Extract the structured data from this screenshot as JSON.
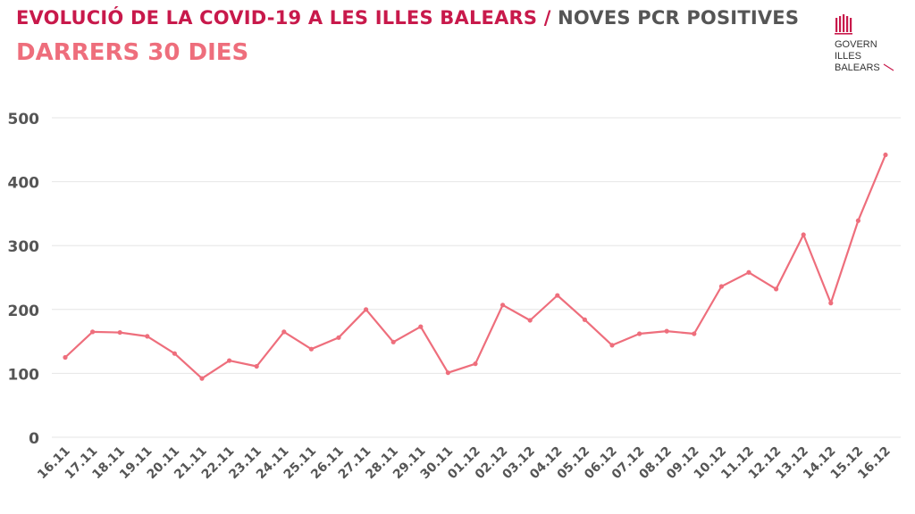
{
  "header": {
    "title_main": "EVOLUCIÓ DE LA COVID-19 A LES ILLES BALEARS",
    "title_separator": " / ",
    "title_sub": "NOVES PCR POSITIVES",
    "subtitle": "DARRERS 30 DIES"
  },
  "logo": {
    "icon": "govern-illes-balears-logo-icon",
    "line1": "GOVERN",
    "line2": "ILLES",
    "line3": "BALEARS"
  },
  "colors": {
    "title": "#c8194b",
    "subtitle": "#ee6e7c",
    "line": "#ee6e7c",
    "grid": "#e6e6e6",
    "tick_text": "#555555"
  },
  "chart_data": {
    "type": "line",
    "title": "EVOLUCIÓ DE LA COVID-19 A LES ILLES BALEARS / NOVES PCR POSITIVES",
    "subtitle": "DARRERS 30 DIES",
    "xlabel": "",
    "ylabel": "",
    "ylim": [
      0,
      500
    ],
    "yticks": [
      0,
      100,
      200,
      300,
      400,
      500
    ],
    "grid": true,
    "legend": "none",
    "categories": [
      "16.11",
      "17.11",
      "18.11",
      "19.11",
      "20.11",
      "21.11",
      "22.11",
      "23.11",
      "24.11",
      "25.11",
      "26.11",
      "27.11",
      "28.11",
      "29.11",
      "30.11",
      "01.12",
      "02.12",
      "03.12",
      "04.12",
      "05.12",
      "06.12",
      "07.12",
      "08.12",
      "09.12",
      "10.12",
      "11.12",
      "12.12",
      "13.12",
      "14.12",
      "15.12",
      "16.12"
    ],
    "series": [
      {
        "values": [
          125,
          165,
          164,
          158,
          131,
          92,
          120,
          111,
          165,
          138,
          156,
          200,
          149,
          173,
          101,
          115,
          207,
          183,
          222,
          184,
          144,
          162,
          166,
          162,
          236,
          258,
          232,
          317,
          210,
          339,
          442
        ]
      }
    ]
  }
}
